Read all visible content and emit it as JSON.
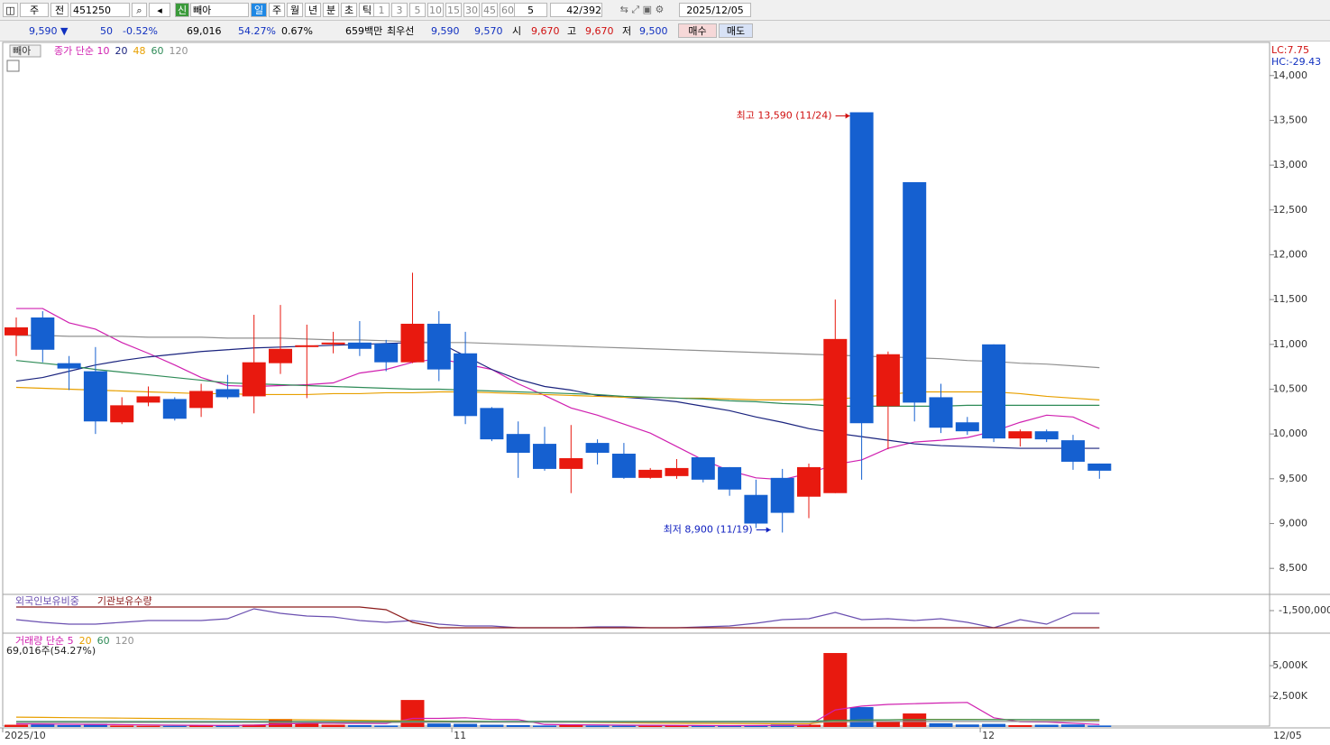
{
  "toolbar": {
    "period": "주",
    "kind": "전",
    "code": "451250",
    "credit": "신",
    "name": "빼아",
    "periods": [
      "일",
      "주",
      "월",
      "년",
      "분",
      "초",
      "틱"
    ],
    "minutes": [
      "1",
      "3",
      "5",
      "10",
      "15",
      "30",
      "45",
      "60"
    ],
    "count": "5",
    "position": "42",
    "total": "/392",
    "date": "2025/12/05"
  },
  "quote": {
    "price": "9,590 ▼",
    "change": "50",
    "rate": "-0.52%",
    "volume": "69,016",
    "volume_rate": "54.27%",
    "turnover": "0.67%",
    "amount": "659백만",
    "best": "최우선",
    "ask": "9,590",
    "bid": "9,570",
    "open_label": "시",
    "open": "9,670",
    "high_label": "고",
    "high": "9,670",
    "low_label": "저",
    "low": "9,500",
    "buy": "매수",
    "sell": "매도"
  },
  "chart_data": [
    {
      "type": "candlestick",
      "title": "빼아",
      "lc": "LC:7.75",
      "hc": "HC:-29.43",
      "up_color": "#e8190f",
      "down_color": "#1560d0",
      "categories": [
        "2025/10",
        null,
        null,
        null,
        null,
        null,
        null,
        null,
        null,
        null,
        null,
        null,
        null,
        null,
        null,
        null,
        null,
        "11",
        null,
        null,
        null,
        null,
        null,
        null,
        null,
        null,
        null,
        null,
        null,
        null,
        null,
        null,
        null,
        null,
        null,
        null,
        null,
        "12",
        null,
        null,
        null,
        null
      ],
      "x_end_label": "12/05",
      "open": [
        11100,
        11300,
        10790,
        10700,
        10130,
        10350,
        10390,
        10290,
        10500,
        10420,
        10790,
        10970,
        11000,
        11020,
        11010,
        10800,
        11230,
        10900,
        10290,
        10000,
        9890,
        9610,
        9900,
        9780,
        9510,
        9530,
        9740,
        9630,
        9320,
        9510,
        9300,
        9340,
        13590,
        10310,
        12810,
        10410,
        10130,
        11000,
        9950,
        10030,
        9930,
        9670
      ],
      "high": [
        11300,
        11370,
        10870,
        10970,
        10410,
        10530,
        10410,
        10560,
        10660,
        11330,
        11440,
        11220,
        11140,
        11260,
        11050,
        11800,
        11370,
        11140,
        10300,
        10140,
        10080,
        10100,
        9940,
        9900,
        9620,
        9720,
        9740,
        9630,
        9490,
        9610,
        9670,
        11500,
        13590,
        10920,
        12810,
        10560,
        10190,
        11000,
        10050,
        10050,
        9990,
        9670
      ],
      "low": [
        10870,
        10800,
        10490,
        10000,
        10110,
        10310,
        10150,
        10190,
        10390,
        10230,
        10670,
        10400,
        10900,
        10870,
        10700,
        10790,
        10590,
        10110,
        9920,
        9510,
        9590,
        9340,
        9660,
        9500,
        9500,
        9500,
        9460,
        9310,
        8950,
        8900,
        9060,
        9340,
        9490,
        9830,
        10140,
        10010,
        9990,
        9910,
        9860,
        9910,
        9600,
        9500
      ],
      "close": [
        11190,
        10940,
        10730,
        10140,
        10320,
        10420,
        10170,
        10480,
        10410,
        10800,
        10950,
        10990,
        11020,
        10950,
        10800,
        11230,
        10720,
        10200,
        9940,
        9790,
        9610,
        9730,
        9790,
        9510,
        9600,
        9620,
        9490,
        9380,
        9000,
        9120,
        9630,
        11060,
        10120,
        10890,
        10350,
        10070,
        10030,
        9950,
        10030,
        9940,
        9690,
        9590
      ],
      "series": [
        {
          "name": "종가 단순 10",
          "color": "#d020b0",
          "values": [
            11400,
            11400,
            11240,
            11170,
            11020,
            10900,
            10770,
            10630,
            10540,
            10530,
            10540,
            10550,
            10570,
            10680,
            10720,
            10800,
            10840,
            10780,
            10720,
            10560,
            10430,
            10290,
            10210,
            10110,
            10010,
            9860,
            9710,
            9590,
            9510,
            9490,
            9560,
            9660,
            9710,
            9840,
            9910,
            9930,
            9960,
            10030,
            10130,
            10210,
            10190,
            10060
          ]
        },
        {
          "name": "20",
          "color": "#1a237e",
          "values": [
            10590,
            10630,
            10700,
            10770,
            10820,
            10860,
            10890,
            10920,
            10940,
            10960,
            10970,
            10980,
            10990,
            11000,
            11010,
            11020,
            11020,
            10870,
            10720,
            10610,
            10530,
            10490,
            10430,
            10410,
            10390,
            10360,
            10310,
            10260,
            10190,
            10130,
            10060,
            10010,
            9970,
            9930,
            9890,
            9870,
            9860,
            9850,
            9840,
            9840,
            9840,
            9840
          ]
        },
        {
          "name": "48",
          "color": "#e8a000",
          "values": [
            10520,
            10510,
            10500,
            10490,
            10480,
            10470,
            10460,
            10450,
            10450,
            10440,
            10440,
            10440,
            10450,
            10450,
            10460,
            10460,
            10470,
            10470,
            10460,
            10450,
            10440,
            10430,
            10420,
            10410,
            10410,
            10400,
            10400,
            10390,
            10380,
            10380,
            10380,
            10390,
            10410,
            10440,
            10470,
            10470,
            10470,
            10470,
            10450,
            10420,
            10400,
            10380
          ]
        },
        {
          "name": "60",
          "color": "#2e8b57",
          "values": [
            10820,
            10790,
            10760,
            10720,
            10690,
            10660,
            10630,
            10600,
            10570,
            10560,
            10550,
            10540,
            10530,
            10520,
            10510,
            10500,
            10500,
            10490,
            10480,
            10470,
            10460,
            10450,
            10440,
            10420,
            10410,
            10400,
            10390,
            10370,
            10360,
            10340,
            10330,
            10310,
            10310,
            10310,
            10310,
            10310,
            10320,
            10320,
            10320,
            10320,
            10320,
            10320
          ]
        },
        {
          "name": "120",
          "color": "#909090",
          "values": [
            11100,
            11100,
            11090,
            11090,
            11090,
            11080,
            11080,
            11080,
            11070,
            11070,
            11070,
            11060,
            11050,
            11050,
            11040,
            11030,
            11020,
            11020,
            11010,
            11000,
            10990,
            10980,
            10970,
            10960,
            10950,
            10940,
            10930,
            10920,
            10910,
            10900,
            10890,
            10880,
            10870,
            10860,
            10850,
            10840,
            10820,
            10810,
            10790,
            10780,
            10760,
            10740
          ]
        }
      ],
      "annotations": [
        {
          "text": "최고 13,590 (11/24)",
          "value": 13590,
          "color": "#d01010"
        },
        {
          "text": "최저 8,900 (11/19)",
          "value": 8900,
          "color": "#1020c0"
        }
      ],
      "ylim": [
        8220,
        14370
      ],
      "yticks": [
        {
          "value": 8500,
          "label": "8,500"
        },
        {
          "value": 9000,
          "label": "9,000"
        },
        {
          "value": 9500,
          "label": "9,500"
        },
        {
          "value": 10000,
          "label": "10,000"
        },
        {
          "value": 10500,
          "label": "10,500"
        },
        {
          "value": 11000,
          "label": "11,000"
        },
        {
          "value": 11500,
          "label": "11,500"
        },
        {
          "value": 12000,
          "label": "12,000"
        },
        {
          "value": 12500,
          "label": "12,500"
        },
        {
          "value": 13000,
          "label": "13,000"
        },
        {
          "value": 13500,
          "label": "13,500"
        },
        {
          "value": 14000,
          "label": "14,000"
        }
      ]
    },
    {
      "type": "line",
      "series": [
        {
          "name": "외국인보유비중",
          "color": "#6a4fb0",
          "values": [
            -1750000,
            -1825000,
            -1875000,
            -1875000,
            -1825000,
            -1775000,
            -1775000,
            -1775000,
            -1725000,
            -1450000,
            -1575000,
            -1650000,
            -1675000,
            -1775000,
            -1825000,
            -1775000,
            -1875000,
            -1925000,
            -1925000,
            -1975000,
            -1975000,
            -1975000,
            -1950000,
            -1950000,
            -1975000,
            -1975000,
            -1950000,
            -1925000,
            -1850000,
            -1750000,
            -1725000,
            -1550000,
            -1750000,
            -1725000,
            -1775000,
            -1725000,
            -1825000,
            -1975000,
            -1750000,
            -1875000,
            -1575000,
            -1575000
          ]
        },
        {
          "name": "기관보유수량",
          "color": "#8b1a1a",
          "values": [
            -1400000,
            -1400000,
            -1400000,
            -1400000,
            -1400000,
            -1400000,
            -1400000,
            -1400000,
            -1400000,
            -1400000,
            -1400000,
            -1400000,
            -1400000,
            -1400000,
            -1475000,
            -1825000,
            -1975000,
            -1975000,
            -1975000,
            -1975000,
            -1975000,
            -1975000,
            -1975000,
            -1975000,
            -1975000,
            -1975000,
            -1975000,
            -1975000,
            -1975000,
            -1975000,
            -1975000,
            -1975000,
            -1975000,
            -1975000,
            -1975000,
            -1975000,
            -1975000,
            -1975000,
            -1975000,
            -1975000,
            -1975000,
            -1975000
          ]
        }
      ],
      "ylim": [
        -2100000,
        -1075000
      ],
      "yticks": [
        {
          "value": -1500000,
          "label": "-1,500,000"
        }
      ]
    },
    {
      "type": "bar",
      "info": "69,016주(54.27%)",
      "values": [
        180,
        200,
        150,
        250,
        120,
        100,
        90,
        130,
        120,
        200,
        650,
        300,
        180,
        150,
        120,
        2200,
        280,
        250,
        180,
        150,
        120,
        200,
        120,
        100,
        90,
        110,
        120,
        100,
        150,
        200,
        180,
        6030,
        1620,
        450,
        1100,
        300,
        200,
        250,
        150,
        180,
        200,
        120
      ],
      "colors": [
        "#e8190f",
        "#1560d0",
        "#1560d0",
        "#1560d0",
        "#e8190f",
        "#e8190f",
        "#1560d0",
        "#e8190f",
        "#1560d0",
        "#e8190f",
        "#e8190f",
        "#e8190f",
        "#e8190f",
        "#1560d0",
        "#1560d0",
        "#e8190f",
        "#1560d0",
        "#1560d0",
        "#1560d0",
        "#1560d0",
        "#1560d0",
        "#e8190f",
        "#1560d0",
        "#1560d0",
        "#e8190f",
        "#e8190f",
        "#1560d0",
        "#1560d0",
        "#1560d0",
        "#1560d0",
        "#e8190f",
        "#e8190f",
        "#1560d0",
        "#e8190f",
        "#e8190f",
        "#1560d0",
        "#1560d0",
        "#1560d0",
        "#e8190f",
        "#1560d0",
        "#1560d0",
        "#1560d0"
      ],
      "series": [
        {
          "name": "거래량 단순 5",
          "color": "#d020b0",
          "values": [
            250,
            240,
            220,
            200,
            190,
            170,
            150,
            140,
            130,
            150,
            230,
            300,
            300,
            290,
            280,
            700,
            700,
            750,
            620,
            600,
            200,
            180,
            170,
            150,
            140,
            130,
            120,
            110,
            120,
            130,
            150,
            1390,
            1700,
            1840,
            1900,
            1960,
            2000,
            750,
            420,
            400,
            300,
            200
          ]
        },
        {
          "name": "20",
          "color": "#e8a000",
          "values": [
            800,
            780,
            760,
            740,
            720,
            700,
            680,
            660,
            640,
            620,
            600,
            580,
            560,
            540,
            520,
            500,
            480,
            460,
            440,
            420,
            400,
            380,
            360,
            340,
            320,
            300,
            290,
            280,
            270,
            260,
            260,
            500,
            560,
            580,
            620,
            620,
            620,
            600,
            590,
            580,
            570,
            560
          ]
        },
        {
          "name": "60",
          "color": "#2e8b57",
          "values": [
            440,
            440,
            440,
            440,
            440,
            440,
            440,
            440,
            440,
            440,
            440,
            440,
            440,
            440,
            440,
            450,
            450,
            450,
            450,
            450,
            450,
            450,
            450,
            450,
            450,
            450,
            450,
            450,
            450,
            450,
            450,
            540,
            560,
            580,
            600,
            600,
            600,
            600,
            600,
            600,
            600,
            600
          ]
        },
        {
          "name": "120",
          "color": "#909090",
          "values": [
            370,
            370,
            370,
            370,
            370,
            370,
            370,
            370,
            370,
            370,
            370,
            370,
            370,
            370,
            370,
            380,
            380,
            380,
            380,
            380,
            380,
            380,
            380,
            380,
            380,
            380,
            380,
            380,
            380,
            380,
            380,
            420,
            430,
            440,
            450,
            450,
            450,
            450,
            450,
            450,
            450,
            450
          ]
        }
      ],
      "ylim": [
        0,
        7650
      ],
      "yticks": [
        {
          "value": 2500,
          "label": "2,500K"
        },
        {
          "value": 5000,
          "label": "5,000K"
        }
      ]
    }
  ]
}
